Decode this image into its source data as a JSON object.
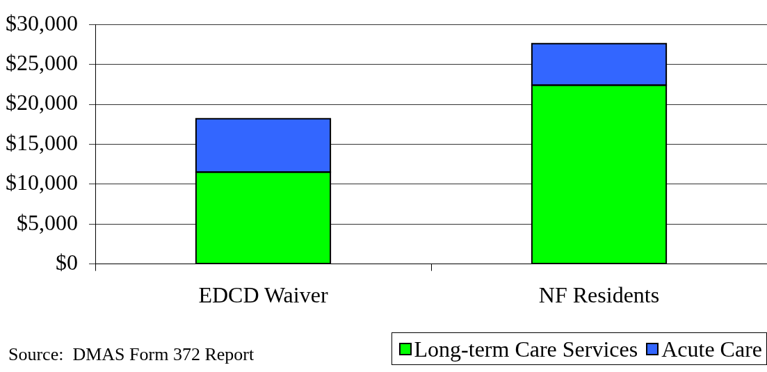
{
  "chart_data": {
    "type": "bar",
    "stacked": true,
    "categories": [
      "EDCD Waiver",
      "NF Residents"
    ],
    "series": [
      {
        "name": "Long-term Care Services",
        "color": "#00ff00",
        "values": [
          11500,
          22400
        ]
      },
      {
        "name": "Acute Care",
        "color": "#3366ff",
        "values": [
          6700,
          5200
        ]
      }
    ],
    "ylim": [
      0,
      30000
    ],
    "yticks": [
      {
        "value": 0,
        "label": "$0"
      },
      {
        "value": 5000,
        "label": "$5,000"
      },
      {
        "value": 10000,
        "label": "$10,000"
      },
      {
        "value": 15000,
        "label": "$15,000"
      },
      {
        "value": 20000,
        "label": "$20,000"
      },
      {
        "value": 25000,
        "label": "$25,000"
      },
      {
        "value": 30000,
        "label": "$30,000"
      }
    ],
    "grid": "y",
    "legend": "bottom right",
    "annotations": [
      "Source:  DMAS Form 372 Report"
    ]
  }
}
